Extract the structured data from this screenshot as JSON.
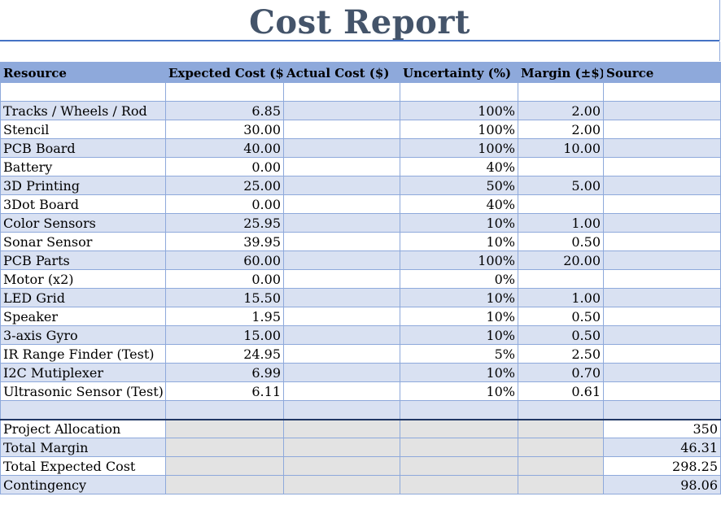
{
  "title": "Cost Report",
  "columns": [
    "Resource",
    "Expected Cost ($)",
    "Actual Cost ($)",
    "Uncertainty (%)",
    "Margin (±$)",
    "Source"
  ],
  "rows": [
    {
      "resource": "",
      "expected": "",
      "actual": "",
      "uncertainty": "",
      "margin": "",
      "source": ""
    },
    {
      "resource": "Tracks / Wheels / Rod",
      "expected": "6.85",
      "actual": "",
      "uncertainty": "100%",
      "margin": "2.00",
      "source": ""
    },
    {
      "resource": "Stencil",
      "expected": "30.00",
      "actual": "",
      "uncertainty": "100%",
      "margin": "2.00",
      "source": ""
    },
    {
      "resource": "PCB Board",
      "expected": "40.00",
      "actual": "",
      "uncertainty": "100%",
      "margin": "10.00",
      "source": ""
    },
    {
      "resource": "Battery",
      "expected": "0.00",
      "actual": "",
      "uncertainty": "40%",
      "margin": "",
      "source": ""
    },
    {
      "resource": "3D Printing",
      "expected": "25.00",
      "actual": "",
      "uncertainty": "50%",
      "margin": "5.00",
      "source": ""
    },
    {
      "resource": "3Dot Board",
      "expected": "0.00",
      "actual": "",
      "uncertainty": "40%",
      "margin": "",
      "source": ""
    },
    {
      "resource": "Color Sensors",
      "expected": "25.95",
      "actual": "",
      "uncertainty": "10%",
      "margin": "1.00",
      "source": ""
    },
    {
      "resource": "Sonar Sensor",
      "expected": "39.95",
      "actual": "",
      "uncertainty": "10%",
      "margin": "0.50",
      "source": ""
    },
    {
      "resource": "PCB Parts",
      "expected": "60.00",
      "actual": "",
      "uncertainty": "100%",
      "margin": "20.00",
      "source": ""
    },
    {
      "resource": "Motor (x2)",
      "expected": "0.00",
      "actual": "",
      "uncertainty": "0%",
      "margin": "",
      "source": ""
    },
    {
      "resource": "LED Grid",
      "expected": "15.50",
      "actual": "",
      "uncertainty": "10%",
      "margin": "1.00",
      "source": ""
    },
    {
      "resource": "Speaker",
      "expected": "1.95",
      "actual": "",
      "uncertainty": "10%",
      "margin": "0.50",
      "source": ""
    },
    {
      "resource": "3-axis Gyro",
      "expected": "15.00",
      "actual": "",
      "uncertainty": "10%",
      "margin": "0.50",
      "source": ""
    },
    {
      "resource": "IR Range Finder (Test)",
      "expected": "24.95",
      "actual": "",
      "uncertainty": "5%",
      "margin": "2.50",
      "source": ""
    },
    {
      "resource": "I2C Mutiplexer",
      "expected": "6.99",
      "actual": "",
      "uncertainty": "10%",
      "margin": "0.70",
      "source": ""
    },
    {
      "resource": "Ultrasonic Sensor (Test)",
      "expected": "6.11",
      "actual": "",
      "uncertainty": "10%",
      "margin": "0.61",
      "source": ""
    },
    {
      "resource": "",
      "expected": "",
      "actual": "",
      "uncertainty": "",
      "margin": "",
      "source": ""
    }
  ],
  "summary": [
    {
      "label": "Project Allocation",
      "value": "350"
    },
    {
      "label": "Total Margin",
      "value": "46.31"
    },
    {
      "label": "Total Expected Cost",
      "value": "298.25"
    },
    {
      "label": "Contingency",
      "value": "98.06"
    }
  ],
  "colors": {
    "title": "#44546a",
    "header_fill": "#8ea9db",
    "band_fill": "#d9e1f2",
    "summary_grey": "#e3e3e3",
    "summary_border": "#203764"
  }
}
